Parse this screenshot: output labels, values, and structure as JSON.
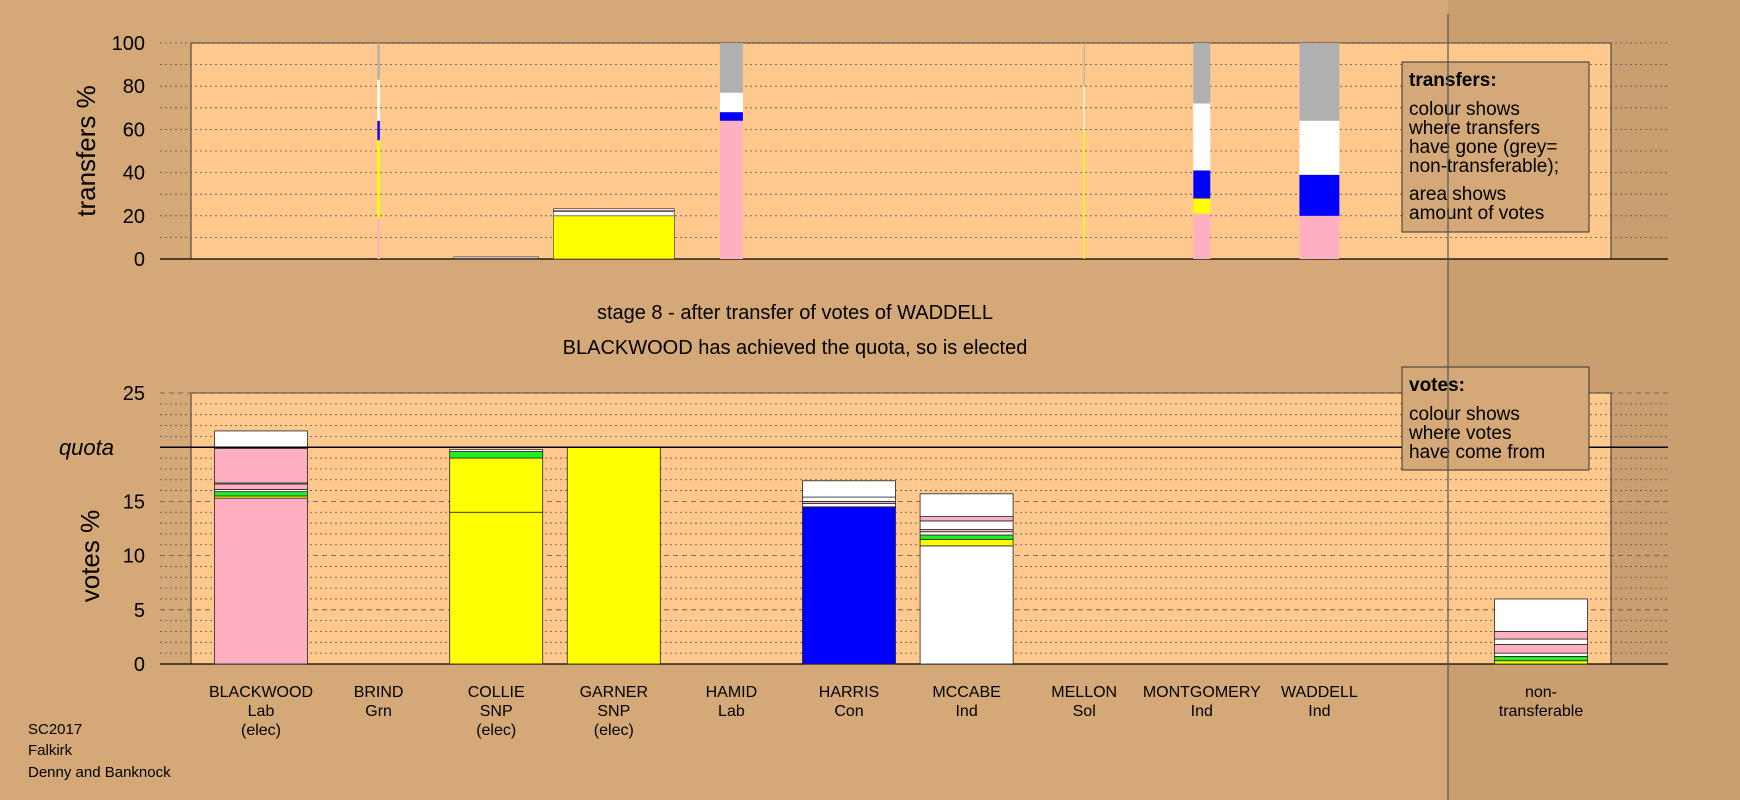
{
  "colors": {
    "background": "#d4a877",
    "plot": "#ffc98e",
    "party": {
      "Lab": "#ffb0c0",
      "Grn": "#22ee22",
      "SNP": "#ffff00",
      "Con": "#0000ff",
      "Ind": "#ffffff",
      "Sol": "#ffb0c0",
      "nontransferable": "#b0b0b0"
    }
  },
  "titles": {
    "stage": "stage 8 - after transfer of votes of WADDELL",
    "result": "BLACKWOOD has achieved the quota, so is elected"
  },
  "footer": [
    "SC2017",
    "Falkirk",
    "Denny and Banknock"
  ],
  "chart_data": [
    {
      "type": "bar",
      "name": "transfers",
      "ylabel": "transfers %",
      "ylim": [
        0,
        100
      ],
      "yticks": [
        0,
        20,
        40,
        60,
        80,
        100
      ],
      "legend": {
        "title": "transfers:",
        "lines1": [
          "colour shows",
          "where transfers",
          "have gone (grey=",
          "non-transferable);"
        ],
        "lines2": [
          "area shows",
          "amount of votes"
        ]
      },
      "bars": [
        {
          "candidate": "BRIND",
          "share": 0.02,
          "segments": [
            [
              "Lab",
              19
            ],
            [
              "SNP",
              36
            ],
            [
              "Con",
              9
            ],
            [
              "Ind",
              19
            ],
            [
              "nontransferable",
              17
            ]
          ]
        },
        {
          "candidate": "COLLIE",
          "share": 0.7,
          "segments": [
            [
              "Lab",
              0.4
            ],
            [
              "Ind",
              0.6
            ]
          ]
        },
        {
          "candidate": "GARNER",
          "share": 1.0,
          "segments": [
            [
              "SNP",
              20
            ],
            [
              "Ind",
              2
            ],
            [
              "Lab",
              0.6
            ],
            [
              "Ind",
              0.7
            ]
          ]
        },
        {
          "candidate": "HAMID",
          "share": 0.19,
          "segments": [
            [
              "Lab",
              64
            ],
            [
              "Con",
              4
            ],
            [
              "Ind",
              9
            ],
            [
              "nontransferable",
              23
            ]
          ]
        },
        {
          "candidate": "MELLON",
          "share": 0.01,
          "segments": [
            [
              "SNP",
              60
            ],
            [
              "Ind",
              20
            ],
            [
              "nontransferable",
              20
            ]
          ]
        },
        {
          "candidate": "MONTGOMERY",
          "share": 0.14,
          "segments": [
            [
              "Lab",
              21
            ],
            [
              "SNP",
              7
            ],
            [
              "Con",
              13
            ],
            [
              "Ind",
              31
            ],
            [
              "nontransferable",
              28
            ]
          ]
        },
        {
          "candidate": "WADDELL",
          "share": 0.33,
          "segments": [
            [
              "Lab",
              20
            ],
            [
              "Con",
              19
            ],
            [
              "Ind",
              25
            ],
            [
              "nontransferable",
              36
            ]
          ]
        }
      ]
    },
    {
      "type": "bar",
      "name": "votes",
      "ylabel": "votes %",
      "ylim": [
        0,
        25
      ],
      "yticks": [
        0,
        5,
        10,
        15,
        20,
        25
      ],
      "quota": 20,
      "quota_label": "quota",
      "legend": {
        "title": "votes:",
        "lines1": [
          "colour shows",
          "where votes",
          "have come from"
        ],
        "lines2": []
      },
      "candidates": [
        {
          "name": "BLACKWOOD",
          "party": "Lab",
          "note": "(elec)",
          "segments": [
            [
              "Lab",
              15.3
            ],
            [
              "SNP",
              0.2
            ],
            [
              "Grn",
              0.4
            ],
            [
              "Ind",
              0.2
            ],
            [
              "Lab",
              0.5
            ],
            [
              "Ind",
              0.1
            ],
            [
              "Lab",
              3.2
            ],
            [
              "Ind",
              1.6
            ]
          ]
        },
        {
          "name": "BRIND",
          "party": "Grn",
          "note": "",
          "segments": []
        },
        {
          "name": "COLLIE",
          "party": "SNP",
          "note": "(elec)",
          "segments": [
            [
              "SNP",
              14.0
            ],
            [
              "SNP",
              5.0
            ],
            [
              "Grn",
              0.6
            ],
            [
              "Ind",
              0.2
            ]
          ]
        },
        {
          "name": "GARNER",
          "party": "SNP",
          "note": "(elec)",
          "segments": [
            [
              "SNP",
              20.0
            ]
          ]
        },
        {
          "name": "HAMID",
          "party": "Lab",
          "note": "",
          "segments": []
        },
        {
          "name": "HARRIS",
          "party": "Con",
          "note": "",
          "segments": [
            [
              "Con",
              14.5
            ],
            [
              "Ind",
              0.3
            ],
            [
              "Lab",
              0.2
            ],
            [
              "Ind",
              0.4
            ],
            [
              "Ind",
              1.5
            ]
          ]
        },
        {
          "name": "MCCABE",
          "party": "Ind",
          "note": "",
          "segments": [
            [
              "Ind",
              10.9
            ],
            [
              "SNP",
              0.6
            ],
            [
              "Grn",
              0.4
            ],
            [
              "Ind",
              0.3
            ],
            [
              "Lab",
              0.2
            ],
            [
              "Ind",
              0.8
            ],
            [
              "Lab",
              0.4
            ],
            [
              "Ind",
              2.1
            ]
          ]
        },
        {
          "name": "MELLON",
          "party": "Sol",
          "note": "",
          "segments": []
        },
        {
          "name": "MONTGOMERY",
          "party": "Ind",
          "note": "",
          "segments": []
        },
        {
          "name": "WADDELL",
          "party": "Ind",
          "note": "",
          "segments": []
        },
        {
          "name": "non-",
          "party": "transferable",
          "note": "",
          "nontransferable": true,
          "segments": [
            [
              "SNP",
              0.3
            ],
            [
              "Grn",
              0.4
            ],
            [
              "Ind",
              0.3
            ],
            [
              "Lab",
              0.8
            ],
            [
              "Ind",
              0.5
            ],
            [
              "Lab",
              0.7
            ],
            [
              "Ind",
              3.0
            ]
          ]
        }
      ]
    }
  ]
}
